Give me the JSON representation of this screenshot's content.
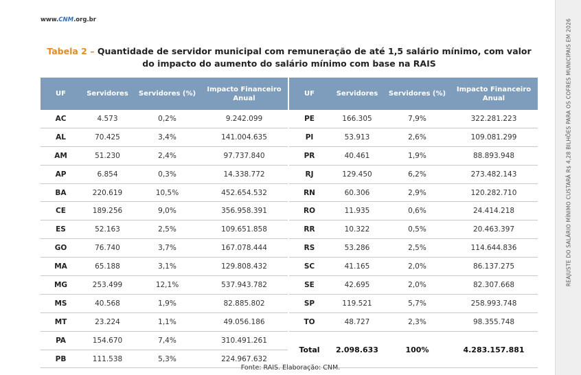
{
  "header": {
    "site_prefix": "www.",
    "site_brand": "CNM",
    "site_suffix": ".org.br"
  },
  "title": {
    "label": "Tabela 2 –",
    "text": "Quantidade de servidor municipal com remuneração de até 1,5 salário mínimo, com valor do impacto do aumento do salário mínimo com base na RAIS"
  },
  "table": {
    "columns": [
      "UF",
      "Servidores",
      "Servidores (%)",
      "Impacto Financeiro Anual"
    ],
    "left_rows": [
      [
        "AC",
        "4.573",
        "0,2%",
        "9.242.099"
      ],
      [
        "AL",
        "70.425",
        "3,4%",
        "141.004.635"
      ],
      [
        "AM",
        "51.230",
        "2,4%",
        "97.737.840"
      ],
      [
        "AP",
        "6.854",
        "0,3%",
        "14.338.772"
      ],
      [
        "BA",
        "220.619",
        "10,5%",
        "452.654.532"
      ],
      [
        "CE",
        "189.256",
        "9,0%",
        "356.958.391"
      ],
      [
        "ES",
        "52.163",
        "2,5%",
        "109.651.858"
      ],
      [
        "GO",
        "76.740",
        "3,7%",
        "167.078.444"
      ],
      [
        "MA",
        "65.188",
        "3,1%",
        "129.808.432"
      ],
      [
        "MG",
        "253.499",
        "12,1%",
        "537.943.782"
      ],
      [
        "MS",
        "40.568",
        "1,9%",
        "82.885.802"
      ],
      [
        "MT",
        "23.224",
        "1,1%",
        "49.056.186"
      ],
      [
        "PA",
        "154.670",
        "7,4%",
        "310.491.261"
      ],
      [
        "PB",
        "111.538",
        "5,3%",
        "224.967.632"
      ]
    ],
    "right_rows": [
      [
        "PE",
        "166.305",
        "7,9%",
        "322.281.223"
      ],
      [
        "PI",
        "53.913",
        "2,6%",
        "109.081.299"
      ],
      [
        "PR",
        "40.461",
        "1,9%",
        "88.893.948"
      ],
      [
        "RJ",
        "129.450",
        "6,2%",
        "273.482.143"
      ],
      [
        "RN",
        "60.306",
        "2,9%",
        "120.282.710"
      ],
      [
        "RO",
        "11.935",
        "0,6%",
        "24.414.218"
      ],
      [
        "RR",
        "10.322",
        "0,5%",
        "20.463.397"
      ],
      [
        "RS",
        "53.286",
        "2,5%",
        "114.644.836"
      ],
      [
        "SC",
        "41.165",
        "2,0%",
        "86.137.275"
      ],
      [
        "SE",
        "42.695",
        "2,0%",
        "82.307.668"
      ],
      [
        "SP",
        "119.521",
        "5,7%",
        "258.993.748"
      ],
      [
        "TO",
        "48.727",
        "2,3%",
        "98.355.748"
      ]
    ],
    "total": [
      "Total",
      "2.098.633",
      "100%",
      "4.283.157.881"
    ]
  },
  "footer": {
    "source": "Fonte: RAIS. Elaboração: CNM."
  },
  "sidebar": {
    "text": "REAJUSTE DO SALÁRIO MÍNIMO CUSTARÁ R$ 4,28 BILHÕES PARA OS COFRES MUNICIPAIS EM 2026"
  }
}
